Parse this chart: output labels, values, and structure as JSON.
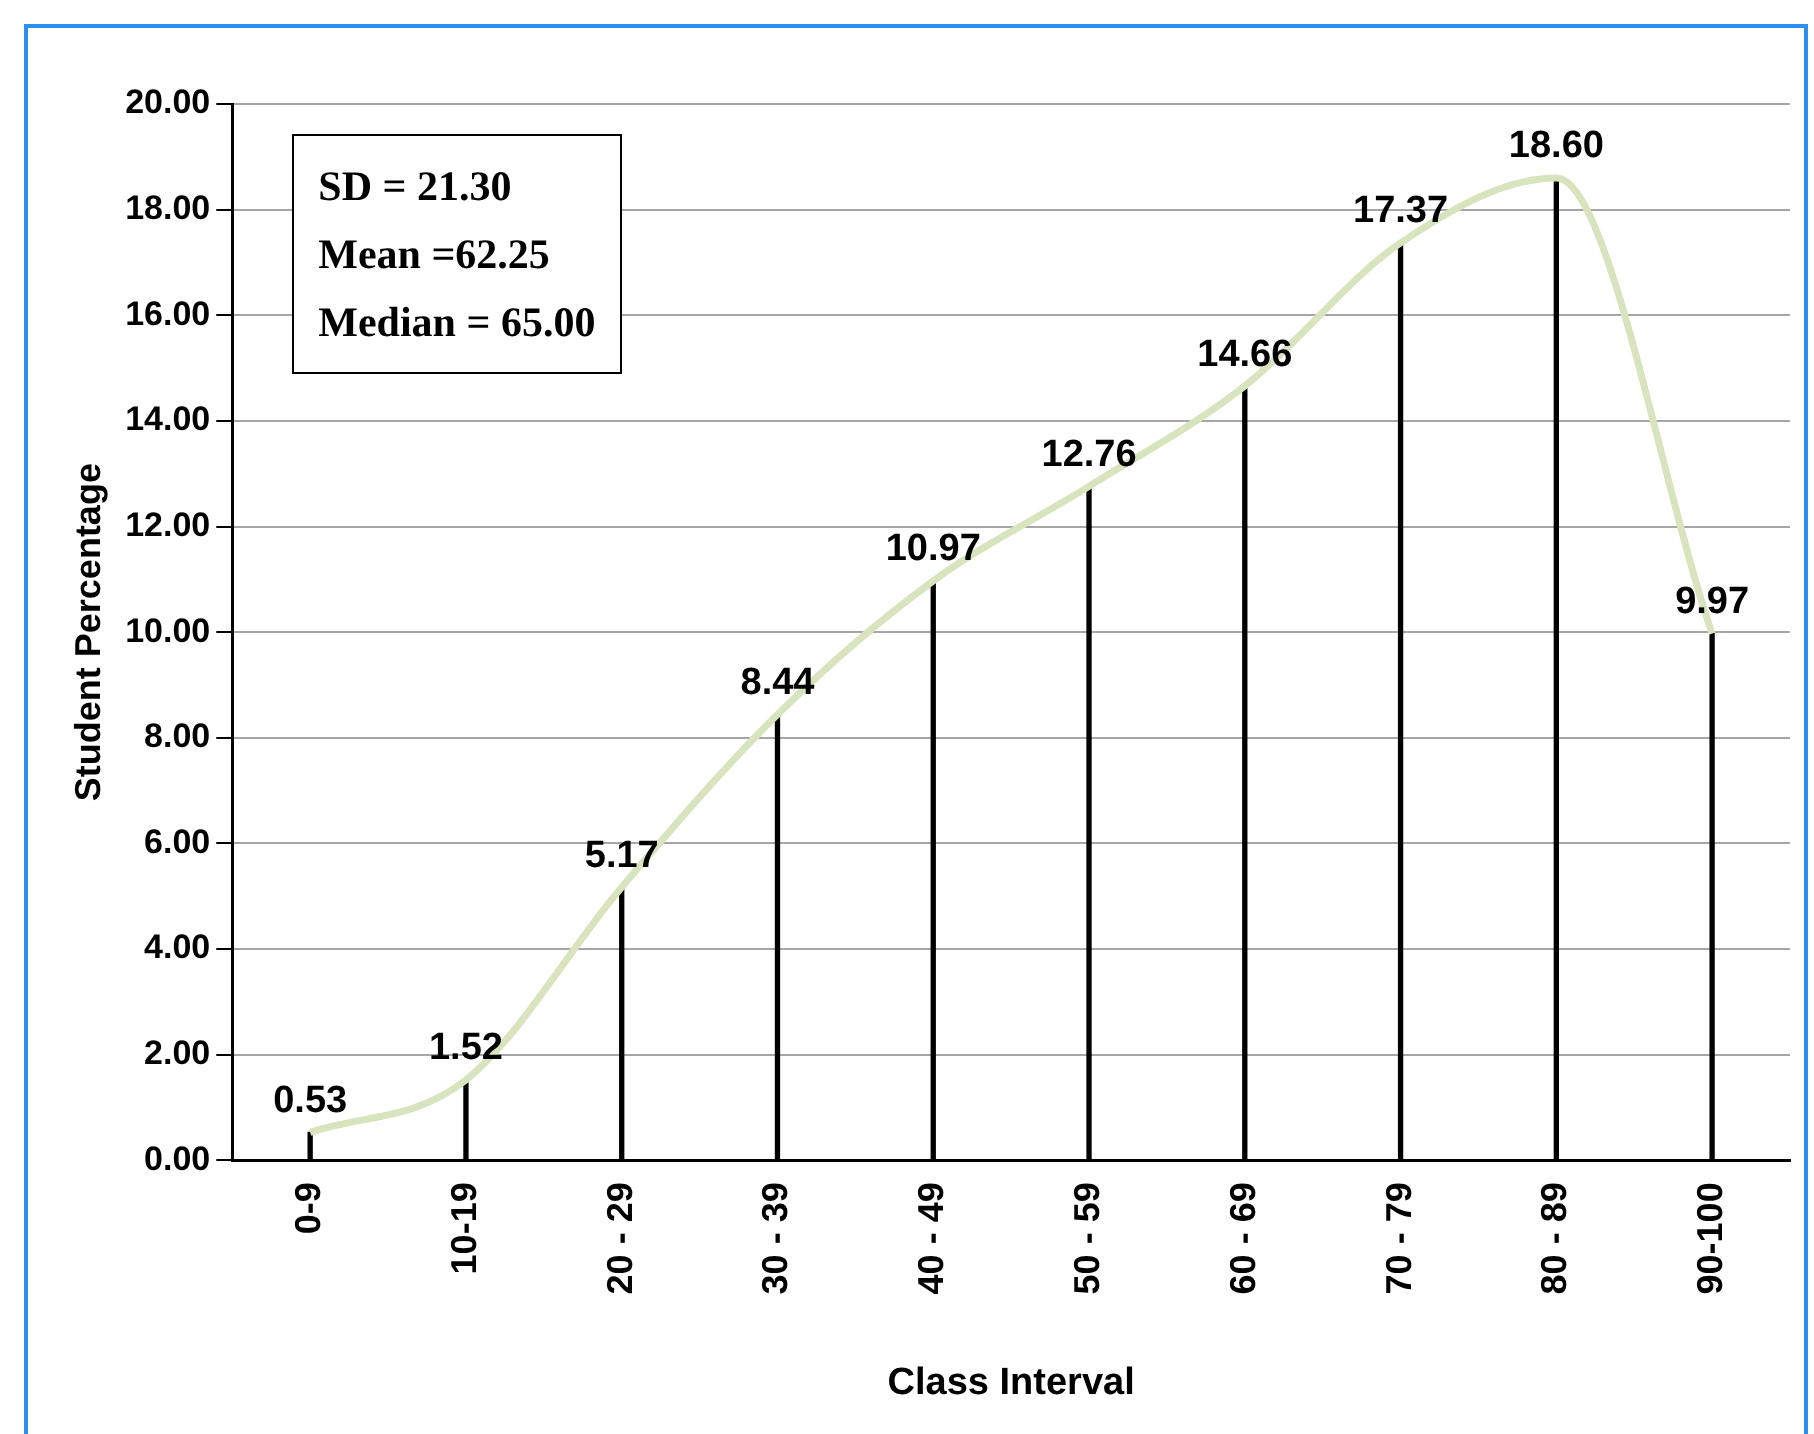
{
  "chart_data": {
    "type": "line",
    "xlabel": "Class Interval",
    "ylabel": "Student Percentage",
    "categories": [
      "0-9",
      "10-19",
      "20 - 29",
      "30 - 39",
      "40 - 49",
      "50 - 59",
      "60 - 69",
      "70 - 79",
      "80 - 89",
      "90-100"
    ],
    "series": [
      {
        "type": "bar",
        "color": "#000000",
        "values": [
          0.53,
          1.52,
          5.17,
          8.44,
          10.97,
          12.76,
          14.66,
          17.37,
          18.6,
          9.97
        ],
        "value_labels": [
          "0.53",
          "1.52",
          "5.17",
          "8.44",
          "10.97",
          "12.76",
          "14.66",
          "17.37",
          "18.60",
          "9.97"
        ]
      },
      {
        "color": "#d7e4bd",
        "values": [
          0.53,
          1.52,
          5.17,
          8.44,
          10.97,
          12.76,
          14.66,
          17.37,
          18.6,
          9.97
        ]
      }
    ],
    "ylim": [
      0,
      20
    ],
    "yticks": [
      {
        "value": 0,
        "label": "0.00"
      },
      {
        "value": 2,
        "label": "2.00"
      },
      {
        "value": 4,
        "label": "4.00"
      },
      {
        "value": 6,
        "label": "6.00"
      },
      {
        "value": 8,
        "label": "8.00"
      },
      {
        "value": 10,
        "label": "10.00"
      },
      {
        "value": 12,
        "label": "12.00"
      },
      {
        "value": 14,
        "label": "14.00"
      },
      {
        "value": 16,
        "label": "16.00"
      },
      {
        "value": 18,
        "label": "18.00"
      },
      {
        "value": 20,
        "label": "20.00"
      }
    ],
    "grid": "y",
    "legend": false,
    "marker": "none",
    "annotations": [
      "SD = 21.30",
      "Mean =62.25",
      "Median  = 65.00"
    ]
  }
}
